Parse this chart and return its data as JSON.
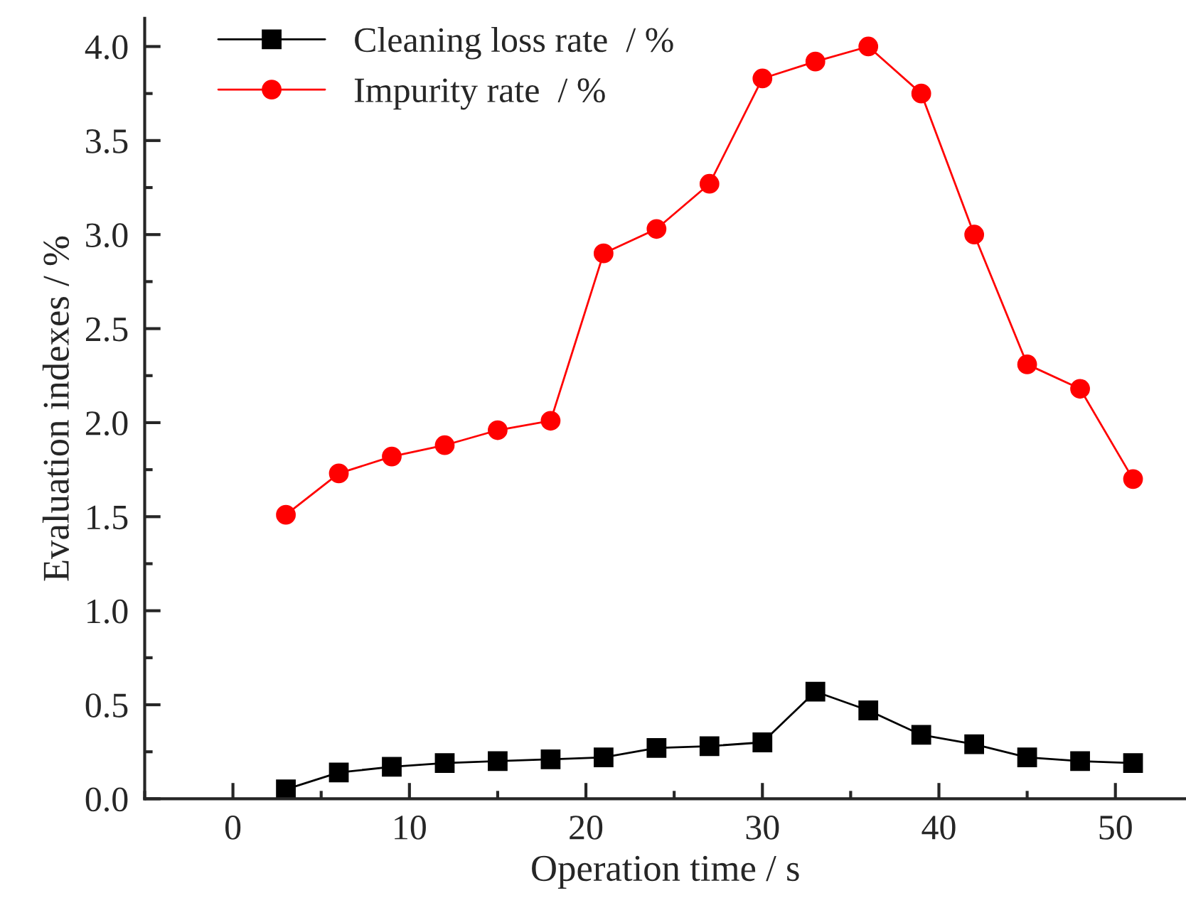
{
  "chart_data": {
    "type": "line",
    "xlabel": "Operation time / s",
    "ylabel": "Evaluation indexes / %",
    "x": [
      3,
      6,
      9,
      12,
      15,
      18,
      21,
      24,
      27,
      30,
      33,
      36,
      39,
      42,
      45,
      48,
      51
    ],
    "series": [
      {
        "name": "Cleaning loss rate  / %",
        "color": "#000000",
        "marker": "square",
        "values": [
          0.05,
          0.14,
          0.17,
          0.19,
          0.2,
          0.21,
          0.22,
          0.27,
          0.28,
          0.3,
          0.57,
          0.47,
          0.34,
          0.29,
          0.22,
          0.2,
          0.19
        ]
      },
      {
        "name": "Impurity rate  / %",
        "color": "#ff0000",
        "marker": "circle",
        "values": [
          1.51,
          1.73,
          1.82,
          1.88,
          1.96,
          2.01,
          2.9,
          3.03,
          3.27,
          3.83,
          3.92,
          4.0,
          3.75,
          3.0,
          2.31,
          2.18,
          1.7
        ]
      }
    ],
    "xlim": [
      -5,
      54
    ],
    "xticks": [
      0,
      10,
      20,
      30,
      40,
      50
    ],
    "ylim": [
      0,
      4.15
    ],
    "yticks": [
      {
        "value": 0,
        "label": "0.0"
      },
      0.5,
      {
        "value": 1,
        "label": "1.0"
      },
      1.5,
      {
        "value": 2,
        "label": "2.0"
      },
      2.5,
      {
        "value": 3,
        "label": "3.0"
      },
      3.5,
      {
        "value": 4,
        "label": "4.0"
      }
    ],
    "legend": "top left",
    "grid": false,
    "line_style": "solid"
  }
}
